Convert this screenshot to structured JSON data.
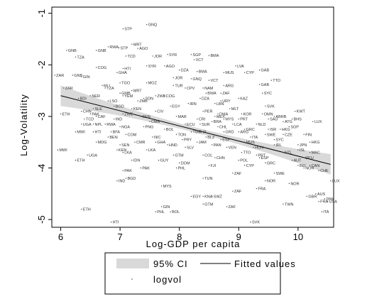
{
  "chart_data": {
    "type": "scatter",
    "title": "",
    "xlabel": "Log-GDP per capita",
    "ylabel": "Log-Volatility",
    "xlim": [
      5.85,
      10.6
    ],
    "ylim": [
      -5.15,
      -0.88
    ],
    "xticks": [
      6,
      7,
      8,
      9,
      10
    ],
    "yticks": [
      -1,
      -2,
      -3,
      -4,
      -5
    ],
    "grid": false,
    "legend": {
      "placement": "bottom",
      "entries": [
        "95% CI",
        "Fitted values",
        "logvol"
      ]
    },
    "fit": {
      "intercept": -0.84,
      "slope": -0.293,
      "ci_halfwidth_at_ends": 0.2,
      "ci_halfwidth_at_center": 0.05,
      "ci_color": "#d9d9d9",
      "line_color": "#000000"
    },
    "points": [
      {
        "label": "GNQ",
        "x": 7.45,
        "y": -1.22
      },
      {
        "label": "STP",
        "x": 7.05,
        "y": -1.3
      },
      {
        "label": "MRT",
        "x": 7.2,
        "y": -1.6
      },
      {
        "label": "RWA",
        "x": 6.8,
        "y": -1.65
      },
      {
        "label": "STP",
        "x": 6.98,
        "y": -1.67
      },
      {
        "label": "AGO",
        "x": 7.3,
        "y": -1.68
      },
      {
        "label": "GNB",
        "x": 6.1,
        "y": -1.72
      },
      {
        "label": "GNB",
        "x": 6.6,
        "y": -1.72
      },
      {
        "label": "TZA",
        "x": 6.25,
        "y": -1.85
      },
      {
        "label": "TCD",
        "x": 7.1,
        "y": -1.83
      },
      {
        "label": "JOR",
        "x": 7.55,
        "y": -1.83
      },
      {
        "label": "SYR",
        "x": 7.8,
        "y": -1.8
      },
      {
        "label": "SGP",
        "x": 8.2,
        "y": -1.8
      },
      {
        "label": "BMA",
        "x": 8.5,
        "y": -1.82
      },
      {
        "label": "VCT",
        "x": 8.25,
        "y": -1.9
      },
      {
        "label": "LVA",
        "x": 8.95,
        "y": -2.02
      },
      {
        "label": "ZAR",
        "x": 5.9,
        "y": -2.2
      },
      {
        "label": "GNB",
        "x": 6.2,
        "y": -2.2
      },
      {
        "label": "COG",
        "x": 6.6,
        "y": -2.05
      },
      {
        "label": "HTI",
        "x": 7.05,
        "y": -2.07
      },
      {
        "label": "SYR",
        "x": 7.45,
        "y": -2.02
      },
      {
        "label": "AGO",
        "x": 7.75,
        "y": -2.02
      },
      {
        "label": "DZA",
        "x": 8.0,
        "y": -2.1
      },
      {
        "label": "BMA",
        "x": 8.3,
        "y": -2.13
      },
      {
        "label": "MUS",
        "x": 8.75,
        "y": -2.15
      },
      {
        "label": "CYP",
        "x": 9.1,
        "y": -2.15
      },
      {
        "label": "GAB",
        "x": 9.35,
        "y": -2.1
      },
      {
        "label": "GIN",
        "x": 6.35,
        "y": -2.23
      },
      {
        "label": "GHA",
        "x": 6.95,
        "y": -2.15
      },
      {
        "label": "MOZ",
        "x": 7.45,
        "y": -2.35
      },
      {
        "label": "JOR",
        "x": 7.9,
        "y": -2.25
      },
      {
        "label": "GNQ",
        "x": 8.2,
        "y": -2.27
      },
      {
        "label": "TTO",
        "x": 9.55,
        "y": -2.3
      },
      {
        "label": "TUR",
        "x": 7.9,
        "y": -2.4
      },
      {
        "label": "ARG",
        "x": 8.75,
        "y": -2.4
      },
      {
        "label": "GAB",
        "x": 9.35,
        "y": -2.38
      },
      {
        "label": "ZAR",
        "x": 6.05,
        "y": -2.45
      },
      {
        "label": "SYC",
        "x": 9.4,
        "y": -2.55
      },
      {
        "label": "TZA",
        "x": 6.75,
        "y": -2.45
      },
      {
        "label": "YEM",
        "x": 7.05,
        "y": -2.6
      },
      {
        "label": "ZWE",
        "x": 7.6,
        "y": -2.6
      },
      {
        "label": "SVK",
        "x": 9.45,
        "y": -2.8
      },
      {
        "label": "KAZ",
        "x": 9.0,
        "y": -2.65
      },
      {
        "label": "LUX",
        "x": 10.25,
        "y": -3.1
      },
      {
        "label": "FIN",
        "x": 10.1,
        "y": -3.35
      },
      {
        "label": "HKG",
        "x": 10.2,
        "y": -3.5
      },
      {
        "label": "MAC",
        "x": 10.2,
        "y": -3.7
      },
      {
        "label": "ISL",
        "x": 10.0,
        "y": -3.65
      },
      {
        "label": "CZE",
        "x": 9.75,
        "y": -3.35
      },
      {
        "label": "ATG",
        "x": 9.75,
        "y": -3.1
      },
      {
        "label": "ABRB",
        "x": 9.6,
        "y": -3.0
      },
      {
        "label": "LUX",
        "x": 10.55,
        "y": -4.25
      },
      {
        "label": "CHE",
        "x": 10.35,
        "y": -4.05
      },
      {
        "label": "NOR",
        "x": 10.1,
        "y": -4.0
      },
      {
        "label": "AUS",
        "x": 10.3,
        "y": -4.5
      },
      {
        "label": "USA",
        "x": 10.5,
        "y": -4.65
      },
      {
        "label": "FRA",
        "x": 10.35,
        "y": -4.65
      },
      {
        "label": "GBR",
        "x": 10.15,
        "y": -4.55
      },
      {
        "label": "DNK",
        "x": 10.45,
        "y": -4.6
      },
      {
        "label": "ITA",
        "x": 10.4,
        "y": -4.85
      },
      {
        "label": "NOR",
        "x": 9.85,
        "y": -4.3
      },
      {
        "label": "SWE",
        "x": 9.6,
        "y": -4.1
      },
      {
        "label": "NOR",
        "x": 9.45,
        "y": -4.25
      },
      {
        "label": "TWN",
        "x": 9.75,
        "y": -4.7
      },
      {
        "label": "FRA",
        "x": 9.3,
        "y": -4.4
      },
      {
        "label": "SVK",
        "x": 9.2,
        "y": -5.05
      },
      {
        "label": "ZAF",
        "x": 8.9,
        "y": -4.45
      },
      {
        "label": "TUN",
        "x": 8.4,
        "y": -4.2
      },
      {
        "label": "ZAF",
        "x": 8.9,
        "y": -4.1
      },
      {
        "label": "CYP",
        "x": 9.1,
        "y": -3.95
      },
      {
        "label": "ESP",
        "x": 9.35,
        "y": -3.8
      },
      {
        "label": "ZAF",
        "x": 8.8,
        "y": -4.75
      },
      {
        "label": "SWZ",
        "x": 8.55,
        "y": -4.55
      },
      {
        "label": "EGY",
        "x": 8.2,
        "y": -4.55
      },
      {
        "label": "KNA",
        "x": 8.4,
        "y": -4.55
      },
      {
        "label": "GTM",
        "x": 8.4,
        "y": -4.7
      },
      {
        "label": "GIN",
        "x": 7.7,
        "y": -4.75
      },
      {
        "label": "PHL",
        "x": 7.6,
        "y": -4.85
      },
      {
        "label": "BOL",
        "x": 7.85,
        "y": -4.85
      },
      {
        "label": "MYS",
        "x": 7.7,
        "y": -4.35
      },
      {
        "label": "PHL",
        "x": 7.95,
        "y": -4.0
      },
      {
        "label": "PAK",
        "x": 7.35,
        "y": -4.0
      },
      {
        "label": "BGD",
        "x": 7.1,
        "y": -4.2
      },
      {
        "label": "IND",
        "x": 6.95,
        "y": -4.25
      },
      {
        "label": "PAK",
        "x": 7.05,
        "y": -4.05
      },
      {
        "label": "IDN",
        "x": 7.2,
        "y": -3.85
      },
      {
        "label": "LKA",
        "x": 7.45,
        "y": -3.65
      },
      {
        "label": "KEN",
        "x": 6.95,
        "y": -3.65
      },
      {
        "label": "LKA",
        "x": 7.05,
        "y": -3.7
      },
      {
        "label": "GTM",
        "x": 7.9,
        "y": -3.75
      },
      {
        "label": "COL",
        "x": 8.4,
        "y": -3.75
      },
      {
        "label": "CHN",
        "x": 8.6,
        "y": -3.8
      },
      {
        "label": "MWI",
        "x": 5.95,
        "y": -3.65
      },
      {
        "label": "UGA",
        "x": 6.45,
        "y": -3.75
      },
      {
        "label": "ETH",
        "x": 6.25,
        "y": -3.85
      },
      {
        "label": "ETH",
        "x": 6.35,
        "y": -4.8
      },
      {
        "label": "HTI",
        "x": 6.85,
        "y": -5.05
      },
      {
        "label": "MWI",
        "x": 6.25,
        "y": -3.3
      },
      {
        "label": "ETH",
        "x": 6.0,
        "y": -2.95
      },
      {
        "label": "CHN",
        "x": 6.35,
        "y": -2.9
      },
      {
        "label": "PAK",
        "x": 6.5,
        "y": -2.95
      },
      {
        "label": "IND",
        "x": 6.9,
        "y": -3.05
      },
      {
        "label": "UGA",
        "x": 6.35,
        "y": -3.15
      },
      {
        "label": "MDG",
        "x": 6.6,
        "y": -3.5
      },
      {
        "label": "NPL",
        "x": 6.55,
        "y": -3.15
      },
      {
        "label": "BEN",
        "x": 6.8,
        "y": -3.4
      },
      {
        "label": "COM",
        "x": 7.1,
        "y": -3.35
      },
      {
        "label": "ESP",
        "x": 8.7,
        "y": -3.45
      },
      {
        "label": "ITA",
        "x": 9.2,
        "y": -3.4
      },
      {
        "label": "SWE",
        "x": 9.45,
        "y": -3.35
      },
      {
        "label": "PRT",
        "x": 9.0,
        "y": -3.05
      },
      {
        "label": "NLD",
        "x": 9.3,
        "y": -3.15
      },
      {
        "label": "IRL",
        "x": 9.6,
        "y": -3.55
      },
      {
        "label": "GRC",
        "x": 9.1,
        "y": -3.25
      },
      {
        "label": "KOR",
        "x": 9.05,
        "y": -2.95
      },
      {
        "label": "MLT",
        "x": 8.85,
        "y": -2.85
      },
      {
        "label": "URY",
        "x": 8.7,
        "y": -2.7
      },
      {
        "label": "PER",
        "x": 8.4,
        "y": -2.9
      },
      {
        "label": "BRA",
        "x": 8.55,
        "y": -3.1
      },
      {
        "label": "MEX",
        "x": 8.6,
        "y": -3.0
      },
      {
        "label": "CRI",
        "x": 8.3,
        "y": -3.05
      },
      {
        "label": "ECU",
        "x": 8.1,
        "y": -3.15
      },
      {
        "label": "TUN",
        "x": 8.2,
        "y": -3.3
      },
      {
        "label": "NGA",
        "x": 7.0,
        "y": -3.2
      },
      {
        "label": "SEN",
        "x": 7.35,
        "y": -3.0
      },
      {
        "label": "CMR",
        "x": 7.5,
        "y": -3.1
      },
      {
        "label": "CIV",
        "x": 7.6,
        "y": -2.9
      },
      {
        "label": "BGD",
        "x": 6.9,
        "y": -2.8
      },
      {
        "label": "KEN",
        "x": 7.2,
        "y": -2.85
      },
      {
        "label": "ZMB",
        "x": 7.3,
        "y": -2.7
      },
      {
        "label": "GMB",
        "x": 7.0,
        "y": -2.55
      },
      {
        "label": "LSO",
        "x": 6.8,
        "y": -2.7
      },
      {
        "label": "SLE",
        "x": 6.55,
        "y": -2.85
      },
      {
        "label": "BDI",
        "x": 6.3,
        "y": -2.65
      },
      {
        "label": "NER",
        "x": 6.5,
        "y": -2.6
      },
      {
        "label": "TGO",
        "x": 7.0,
        "y": -2.35
      },
      {
        "label": "MLI",
        "x": 6.7,
        "y": -2.4
      },
      {
        "label": "BFA",
        "x": 6.85,
        "y": -3.3
      },
      {
        "label": "GHA",
        "x": 7.6,
        "y": -3.5
      },
      {
        "label": "HND",
        "x": 7.8,
        "y": -3.55
      },
      {
        "label": "SLV",
        "x": 8.1,
        "y": -3.6
      },
      {
        "label": "JAM",
        "x": 8.3,
        "y": -3.5
      },
      {
        "label": "PAN",
        "x": 8.55,
        "y": -3.55
      },
      {
        "label": "DOM",
        "x": 8.0,
        "y": -3.9
      },
      {
        "label": "BWA",
        "x": 8.45,
        "y": -2.55
      },
      {
        "label": "NAM",
        "x": 8.4,
        "y": -2.45
      },
      {
        "label": "ZAF",
        "x": 8.7,
        "y": -2.55
      },
      {
        "label": "CHL",
        "x": 8.65,
        "y": -3.2
      },
      {
        "label": "ARG",
        "x": 9.0,
        "y": -3.3
      },
      {
        "label": "ISR",
        "x": 9.5,
        "y": -3.25
      },
      {
        "label": "NZL",
        "x": 9.75,
        "y": -3.7
      },
      {
        "label": "AUT",
        "x": 9.9,
        "y": -3.85
      },
      {
        "label": "BEL",
        "x": 10.0,
        "y": -3.95
      },
      {
        "label": "DEU",
        "x": 10.1,
        "y": -3.8
      },
      {
        "label": "JPN",
        "x": 10.0,
        "y": -3.55
      },
      {
        "label": "CAN",
        "x": 10.2,
        "y": -3.95
      },
      {
        "label": "SGP",
        "x": 9.85,
        "y": -3.2
      },
      {
        "label": "BHS",
        "x": 9.9,
        "y": -3.05
      },
      {
        "label": "KWT",
        "x": 9.95,
        "y": -2.9
      },
      {
        "label": "OMN",
        "x": 9.4,
        "y": -2.95
      },
      {
        "label": "SAU",
        "x": 9.5,
        "y": -3.05
      },
      {
        "label": "MYS",
        "x": 8.75,
        "y": -3.05
      },
      {
        "label": "THA",
        "x": 8.3,
        "y": -3.3
      },
      {
        "label": "PRY",
        "x": 8.05,
        "y": -3.45
      },
      {
        "label": "BOL",
        "x": 7.75,
        "y": -3.25
      },
      {
        "label": "NIC",
        "x": 7.55,
        "y": -3.4
      },
      {
        "label": "MAR",
        "x": 7.95,
        "y": -3.0
      },
      {
        "label": "EGY",
        "x": 7.85,
        "y": -2.8
      },
      {
        "label": "IRN",
        "x": 8.15,
        "y": -2.75
      },
      {
        "label": "DZA",
        "x": 8.35,
        "y": -2.65
      },
      {
        "label": "VEN",
        "x": 8.8,
        "y": -3.6
      },
      {
        "label": "TTO",
        "x": 9.05,
        "y": -3.7
      },
      {
        "label": "HUN",
        "x": 9.25,
        "y": -3.6
      },
      {
        "label": "POL",
        "x": 9.0,
        "y": -3.85
      },
      {
        "label": "FJI",
        "x": 8.5,
        "y": -3.95
      },
      {
        "label": "GUY",
        "x": 7.65,
        "y": -3.85
      },
      {
        "label": "PNG",
        "x": 7.4,
        "y": -3.2
      },
      {
        "label": "CAF",
        "x": 6.6,
        "y": -3.0
      },
      {
        "label": "RWA",
        "x": 6.75,
        "y": -3.15
      },
      {
        "label": "MRT",
        "x": 7.2,
        "y": -2.5
      },
      {
        "label": "SDN",
        "x": 7.4,
        "y": -2.65
      },
      {
        "label": "HKG",
        "x": 9.7,
        "y": -3.25
      },
      {
        "label": "PRT",
        "x": 9.3,
        "y": -3.75
      },
      {
        "label": "GRC",
        "x": 9.45,
        "y": -3.9
      },
      {
        "label": "SYC",
        "x": 9.6,
        "y": -3.45
      },
      {
        "label": "MUS",
        "x": 9.1,
        "y": -3.5
      },
      {
        "label": "LBN",
        "x": 8.6,
        "y": -2.75
      },
      {
        "label": "CPV",
        "x": 8.1,
        "y": -2.45
      },
      {
        "label": "VCT",
        "x": 8.5,
        "y": -2.3
      },
      {
        "label": "DMA",
        "x": 8.65,
        "y": -2.95
      },
      {
        "label": "LCA",
        "x": 8.9,
        "y": -3.15
      },
      {
        "label": "GRD",
        "x": 8.75,
        "y": -3.3
      },
      {
        "label": "BLZ",
        "x": 8.45,
        "y": -3.4
      },
      {
        "label": "SUR",
        "x": 8.35,
        "y": -3.15
      },
      {
        "label": "TON",
        "x": 7.95,
        "y": -3.35
      },
      {
        "label": "COG",
        "x": 7.75,
        "y": -2.6
      },
      {
        "label": "ZWE",
        "x": 7.05,
        "y": -2.95
      },
      {
        "label": "CMR",
        "x": 7.25,
        "y": -3.5
      },
      {
        "label": "SEN",
        "x": 7.0,
        "y": -3.55
      },
      {
        "label": "HTI",
        "x": 6.55,
        "y": -3.3
      },
      {
        "label": "TCD",
        "x": 6.4,
        "y": -3.05
      }
    ]
  }
}
